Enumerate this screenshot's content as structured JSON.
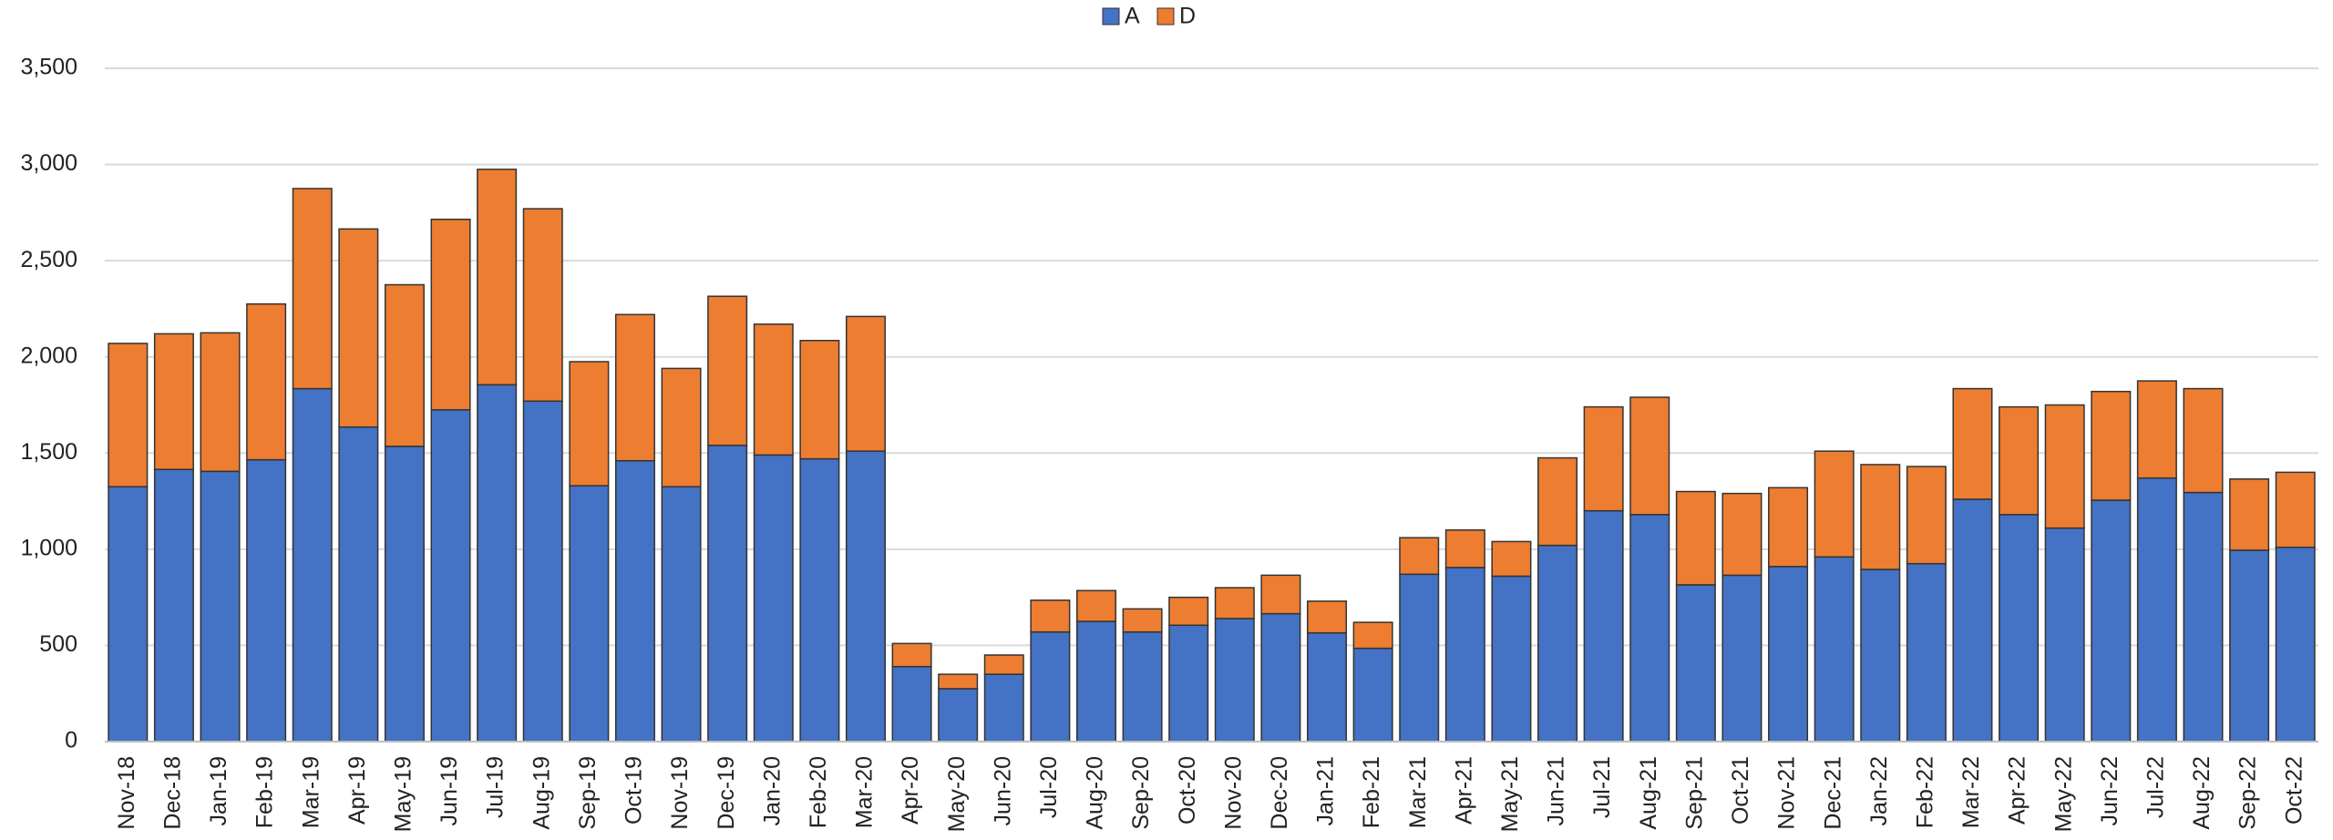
{
  "chart_data": {
    "type": "stacked_bar",
    "categories": [
      "Nov-18",
      "Dec-18",
      "Jan-19",
      "Feb-19",
      "Mar-19",
      "Apr-19",
      "May-19",
      "Jun-19",
      "Jul-19",
      "Aug-19",
      "Sep-19",
      "Oct-19",
      "Nov-19",
      "Dec-19",
      "Jan-20",
      "Feb-20",
      "Mar-20",
      "Apr-20",
      "May-20",
      "Jun-20",
      "Jul-20",
      "Aug-20",
      "Sep-20",
      "Oct-20",
      "Nov-20",
      "Dec-20",
      "Jan-21",
      "Feb-21",
      "Mar-21",
      "Apr-21",
      "May-21",
      "Jun-21",
      "Jul-21",
      "Aug-21",
      "Sep-21",
      "Oct-21",
      "Nov-21",
      "Dec-21",
      "Jan-22",
      "Feb-22",
      "Mar-22",
      "Apr-22",
      "May-22",
      "Jun-22",
      "Jul-22",
      "Aug-22",
      "Sep-22",
      "Oct-22"
    ],
    "series": [
      {
        "name": "A",
        "color": "#4472c4",
        "values": [
          1325,
          1415,
          1405,
          1465,
          1835,
          1635,
          1535,
          1725,
          1855,
          1770,
          1330,
          1460,
          1325,
          1540,
          1490,
          1470,
          1510,
          390,
          275,
          350,
          570,
          625,
          570,
          605,
          640,
          665,
          565,
          485,
          870,
          905,
          860,
          1020,
          1200,
          1180,
          815,
          865,
          910,
          960,
          895,
          925,
          1260,
          1180,
          1110,
          1255,
          1370,
          1295,
          995,
          1010
        ]
      },
      {
        "name": "D",
        "color": "#ed7d31",
        "values": [
          745,
          705,
          720,
          810,
          1040,
          1030,
          840,
          990,
          1120,
          1000,
          645,
          760,
          615,
          775,
          680,
          615,
          700,
          120,
          75,
          100,
          165,
          160,
          120,
          145,
          160,
          200,
          165,
          135,
          190,
          195,
          180,
          455,
          540,
          610,
          485,
          425,
          410,
          550,
          545,
          505,
          575,
          560,
          640,
          565,
          505,
          540,
          370,
          390
        ]
      }
    ],
    "ylim": [
      0,
      3500
    ],
    "yticks": [
      0,
      500,
      {
        "value": 1000,
        "label": "1,000"
      },
      {
        "value": 1500,
        "label": "1,500"
      },
      {
        "value": 2000,
        "label": "2,000"
      },
      {
        "value": 2500,
        "label": "2,500"
      },
      {
        "value": 3000,
        "label": "3,000"
      },
      {
        "value": 3500,
        "label": "3,500"
      }
    ],
    "grid": true,
    "legend": "top"
  }
}
